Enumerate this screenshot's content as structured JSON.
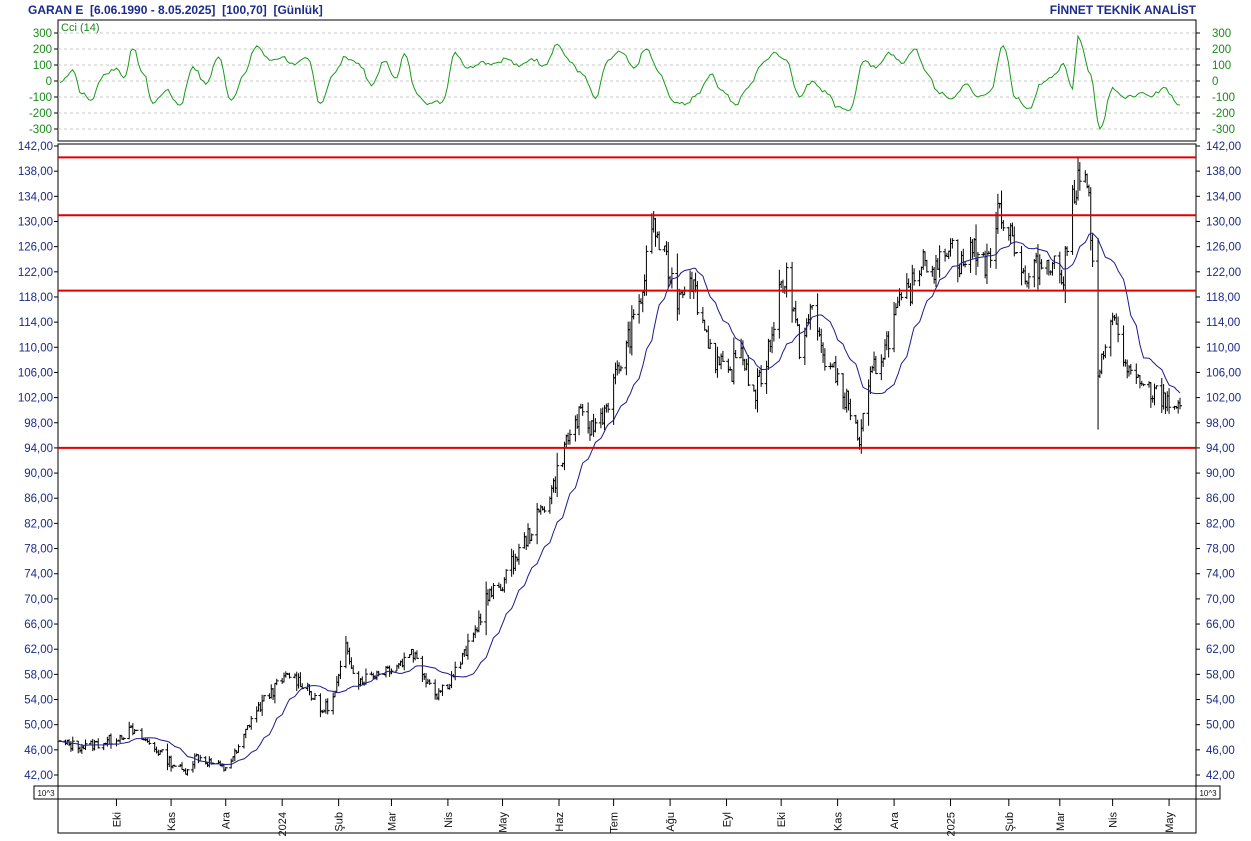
{
  "header": {
    "title": "GARAN E  [6.06.1990 - 8.05.2025]  [100,70]  [Günlük]",
    "provider": "FİNNET TEKNİK ANALİST"
  },
  "scale_label": "10^3",
  "colors": {
    "price_bars": "#000000",
    "moving_average": "#1c1c8a",
    "cci": "#1a9a1a",
    "levels": "#e00000",
    "axis_text": "#1c2a8a",
    "cci_text": "#1a8a1a"
  },
  "chart_data": [
    {
      "type": "line",
      "indicator": "Cci (14)",
      "title": "Cci (14)",
      "ylim": [
        -340,
        340
      ],
      "yticks": [
        "300",
        "200",
        "100",
        "0",
        "-100",
        "-200",
        "-300"
      ],
      "grid": true,
      "x_start": "2023-09-01",
      "x_end": "2025-05-08",
      "points": [
        [
          "2023-09-01",
          -10
        ],
        [
          "2023-09-08",
          70
        ],
        [
          "2023-09-13",
          -80
        ],
        [
          "2023-09-18",
          -120
        ],
        [
          "2023-09-25",
          40
        ],
        [
          "2023-10-02",
          80
        ],
        [
          "2023-10-06",
          20
        ],
        [
          "2023-10-11",
          200
        ],
        [
          "2023-10-17",
          40
        ],
        [
          "2023-10-22",
          -140
        ],
        [
          "2023-10-29",
          -60
        ],
        [
          "2023-11-06",
          -150
        ],
        [
          "2023-11-13",
          90
        ],
        [
          "2023-11-20",
          -20
        ],
        [
          "2023-11-27",
          150
        ],
        [
          "2023-12-04",
          -120
        ],
        [
          "2023-12-11",
          40
        ],
        [
          "2023-12-18",
          220
        ],
        [
          "2023-12-25",
          130
        ],
        [
          "2024-01-01",
          150
        ],
        [
          "2024-01-08",
          100
        ],
        [
          "2024-01-15",
          140
        ],
        [
          "2024-01-22",
          -140
        ],
        [
          "2024-01-29",
          40
        ],
        [
          "2024-02-05",
          150
        ],
        [
          "2024-02-12",
          110
        ],
        [
          "2024-02-19",
          -30
        ],
        [
          "2024-02-26",
          120
        ],
        [
          "2024-03-04",
          20
        ],
        [
          "2024-03-08",
          170
        ],
        [
          "2024-03-15",
          -80
        ],
        [
          "2024-03-22",
          -140
        ],
        [
          "2024-03-29",
          -130
        ],
        [
          "2024-04-05",
          180
        ],
        [
          "2024-04-12",
          80
        ],
        [
          "2024-04-19",
          120
        ],
        [
          "2024-04-26",
          110
        ],
        [
          "2024-05-03",
          140
        ],
        [
          "2024-05-10",
          90
        ],
        [
          "2024-05-17",
          140
        ],
        [
          "2024-05-24",
          100
        ],
        [
          "2024-05-31",
          230
        ],
        [
          "2024-06-07",
          120
        ],
        [
          "2024-06-14",
          40
        ],
        [
          "2024-06-21",
          -110
        ],
        [
          "2024-06-28",
          130
        ],
        [
          "2024-07-05",
          180
        ],
        [
          "2024-07-12",
          80
        ],
        [
          "2024-07-19",
          200
        ],
        [
          "2024-07-26",
          50
        ],
        [
          "2024-08-02",
          -120
        ],
        [
          "2024-08-09",
          -150
        ],
        [
          "2024-08-16",
          -80
        ],
        [
          "2024-08-23",
          40
        ],
        [
          "2024-08-30",
          -60
        ],
        [
          "2024-09-06",
          -150
        ],
        [
          "2024-09-13",
          -40
        ],
        [
          "2024-09-20",
          100
        ],
        [
          "2024-09-27",
          180
        ],
        [
          "2024-10-04",
          130
        ],
        [
          "2024-10-11",
          -100
        ],
        [
          "2024-10-18",
          0
        ],
        [
          "2024-10-25",
          -60
        ],
        [
          "2024-11-01",
          -160
        ],
        [
          "2024-11-08",
          -180
        ],
        [
          "2024-11-15",
          120
        ],
        [
          "2024-11-22",
          80
        ],
        [
          "2024-11-29",
          180
        ],
        [
          "2024-12-06",
          110
        ],
        [
          "2024-12-13",
          200
        ],
        [
          "2024-12-20",
          50
        ],
        [
          "2024-12-27",
          -80
        ],
        [
          "2025-01-03",
          -110
        ],
        [
          "2025-01-10",
          -20
        ],
        [
          "2025-01-17",
          -100
        ],
        [
          "2025-01-24",
          -60
        ],
        [
          "2025-01-31",
          220
        ],
        [
          "2025-02-07",
          -110
        ],
        [
          "2025-02-14",
          -170
        ],
        [
          "2025-02-21",
          -20
        ],
        [
          "2025-02-28",
          40
        ],
        [
          "2025-03-05",
          110
        ],
        [
          "2025-03-10",
          -50
        ],
        [
          "2025-03-13",
          280
        ],
        [
          "2025-03-20",
          40
        ],
        [
          "2025-03-25",
          -300
        ],
        [
          "2025-04-01",
          -40
        ],
        [
          "2025-04-08",
          -110
        ],
        [
          "2025-04-15",
          -80
        ],
        [
          "2025-04-22",
          -100
        ],
        [
          "2025-04-29",
          -40
        ],
        [
          "2025-05-08",
          -150
        ]
      ]
    },
    {
      "type": "bar",
      "style": "ohlc",
      "ylim": [
        40,
        143
      ],
      "yticks": [
        "142,00",
        "138,00",
        "134,00",
        "130,00",
        "126,00",
        "122,00",
        "118,00",
        "114,00",
        "110,00",
        "106,00",
        "102,00",
        "98,00",
        "94,00",
        "90,00",
        "86,00",
        "82,00",
        "78,00",
        "74,00",
        "70,00",
        "66,00",
        "62,00",
        "58,00",
        "54,00",
        "50,00",
        "46,00",
        "42,00"
      ],
      "xticks": [
        {
          "label": "Eki",
          "date": "2023-10-02"
        },
        {
          "label": "Kas",
          "date": "2023-11-01"
        },
        {
          "label": "Ara",
          "date": "2023-12-01"
        },
        {
          "label": "2024",
          "date": "2024-01-01"
        },
        {
          "label": "Şub",
          "date": "2024-02-01"
        },
        {
          "label": "Mar",
          "date": "2024-03-01"
        },
        {
          "label": "Nis",
          "date": "2024-04-01"
        },
        {
          "label": "May",
          "date": "2024-05-01"
        },
        {
          "label": "Haz",
          "date": "2024-06-01"
        },
        {
          "label": "Tem",
          "date": "2024-07-01"
        },
        {
          "label": "Ağu",
          "date": "2024-08-01"
        },
        {
          "label": "Eyl",
          "date": "2024-09-01"
        },
        {
          "label": "Eki",
          "date": "2024-10-01"
        },
        {
          "label": "Kas",
          "date": "2024-11-01"
        },
        {
          "label": "Ara",
          "date": "2024-12-02"
        },
        {
          "label": "2025",
          "date": "2025-01-02"
        },
        {
          "label": "Şub",
          "date": "2025-02-03"
        },
        {
          "label": "Mar",
          "date": "2025-03-03"
        },
        {
          "label": "Nis",
          "date": "2025-04-01"
        },
        {
          "label": "May",
          "date": "2025-05-02"
        }
      ],
      "horizontal_levels": [
        140.2,
        131.0,
        119.0,
        94.0
      ],
      "grid": false,
      "price_path": [
        [
          "2023-09-01",
          47
        ],
        [
          "2023-09-15",
          46.5
        ],
        [
          "2023-09-28",
          47.5
        ],
        [
          "2023-10-10",
          49
        ],
        [
          "2023-10-20",
          47
        ],
        [
          "2023-11-01",
          44
        ],
        [
          "2023-11-08",
          42.5
        ],
        [
          "2023-11-15",
          45
        ],
        [
          "2023-11-22",
          44
        ],
        [
          "2023-11-30",
          43
        ],
        [
          "2023-12-08",
          46
        ],
        [
          "2023-12-15",
          51
        ],
        [
          "2023-12-25",
          55
        ],
        [
          "2024-01-05",
          58
        ],
        [
          "2024-01-15",
          56
        ],
        [
          "2024-01-22",
          52
        ],
        [
          "2024-01-29",
          54
        ],
        [
          "2024-02-05",
          62
        ],
        [
          "2024-02-12",
          57
        ],
        [
          "2024-02-20",
          58
        ],
        [
          "2024-02-28",
          59
        ],
        [
          "2024-03-07",
          60
        ],
        [
          "2024-03-12",
          62
        ],
        [
          "2024-03-19",
          58
        ],
        [
          "2024-03-26",
          55
        ],
        [
          "2024-04-02",
          57
        ],
        [
          "2024-04-08",
          60
        ],
        [
          "2024-04-15",
          64
        ],
        [
          "2024-04-22",
          70
        ],
        [
          "2024-04-30",
          72
        ],
        [
          "2024-05-07",
          76
        ],
        [
          "2024-05-15",
          80
        ],
        [
          "2024-05-22",
          84
        ],
        [
          "2024-05-29",
          88
        ],
        [
          "2024-06-05",
          95
        ],
        [
          "2024-06-12",
          99
        ],
        [
          "2024-06-19",
          97
        ],
        [
          "2024-06-26",
          100
        ],
        [
          "2024-07-03",
          106
        ],
        [
          "2024-07-10",
          112
        ],
        [
          "2024-07-17",
          119
        ],
        [
          "2024-07-22",
          130
        ],
        [
          "2024-07-29",
          124
        ],
        [
          "2024-08-05",
          118
        ],
        [
          "2024-08-12",
          122
        ],
        [
          "2024-08-19",
          114
        ],
        [
          "2024-08-26",
          108
        ],
        [
          "2024-09-02",
          105
        ],
        [
          "2024-09-09",
          110
        ],
        [
          "2024-09-16",
          102
        ],
        [
          "2024-09-23",
          108
        ],
        [
          "2024-09-30",
          119
        ],
        [
          "2024-10-04",
          122
        ],
        [
          "2024-10-11",
          110
        ],
        [
          "2024-10-18",
          116
        ],
        [
          "2024-10-25",
          108
        ],
        [
          "2024-11-01",
          105
        ],
        [
          "2024-11-08",
          100
        ],
        [
          "2024-11-13",
          95
        ],
        [
          "2024-11-20",
          106
        ],
        [
          "2024-11-27",
          110
        ],
        [
          "2024-12-04",
          116
        ],
        [
          "2024-12-11",
          119
        ],
        [
          "2024-12-18",
          125
        ],
        [
          "2024-12-25",
          122
        ],
        [
          "2025-01-01",
          127
        ],
        [
          "2025-01-08",
          123
        ],
        [
          "2025-01-15",
          126
        ],
        [
          "2025-01-22",
          123
        ],
        [
          "2025-01-29",
          132
        ],
        [
          "2025-02-05",
          128
        ],
        [
          "2025-02-12",
          120
        ],
        [
          "2025-02-19",
          123
        ],
        [
          "2025-02-26",
          124
        ],
        [
          "2025-03-05",
          121
        ],
        [
          "2025-03-10",
          134
        ],
        [
          "2025-03-14",
          138
        ],
        [
          "2025-03-19",
          134
        ],
        [
          "2025-03-24",
          104
        ],
        [
          "2025-03-31",
          116
        ],
        [
          "2025-04-07",
          108
        ],
        [
          "2025-04-14",
          104
        ],
        [
          "2025-04-21",
          103
        ],
        [
          "2025-04-28",
          102
        ],
        [
          "2025-05-08",
          100.7
        ]
      ]
    }
  ]
}
